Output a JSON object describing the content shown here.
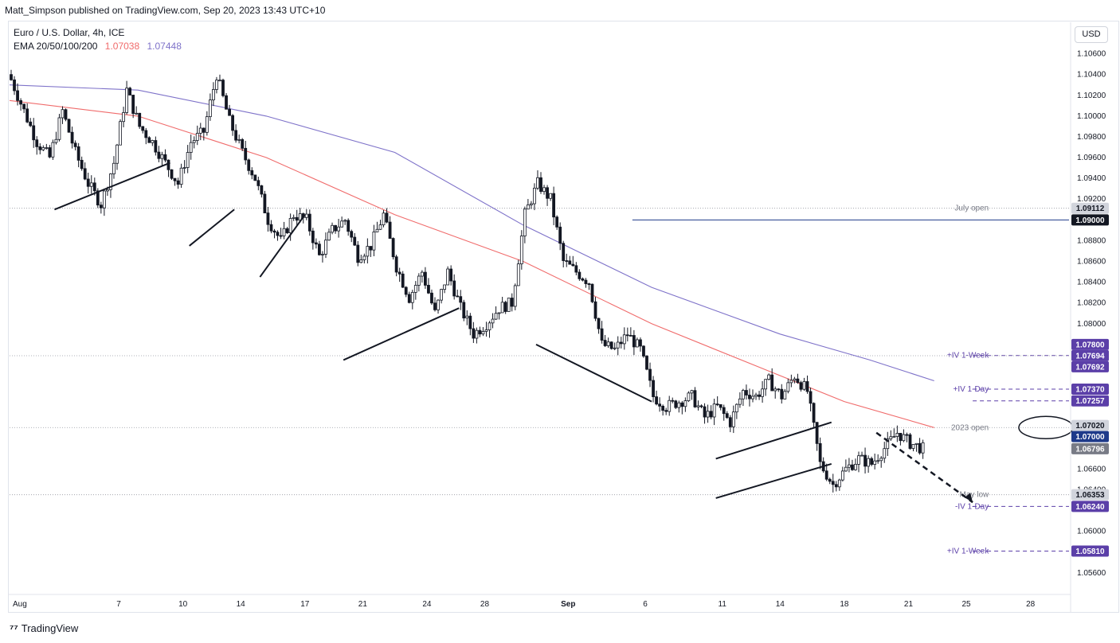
{
  "header": {
    "publisher": "Matt_Simpson published on TradingView.com, Sep 20, 2023 13:43 UTC+10",
    "symbol": "Euro / U.S. Dollar, 4h, ICE",
    "ema_label": "EMA 20/50/100/200",
    "ema_value_1": "1.07038",
    "ema_value_2": "1.07448",
    "currency_button": "USD"
  },
  "footer": {
    "brand": "TradingView"
  },
  "colors": {
    "up": "#131722",
    "down": "#131722",
    "ema_red": "#f06b6b",
    "ema_purple": "#7e72c9",
    "badge_dark": "#131722",
    "badge_blue": "#1e3a8a",
    "badge_purple": "#5b3fa8",
    "badge_gray": "#787b86",
    "badge_light": "#d1d4dc"
  },
  "chart_data": {
    "type": "candlestick",
    "title": "Euro / U.S. Dollar, 4h, ICE",
    "ylim": [
      1.054,
      1.1075
    ],
    "y_ticks": [
      "1.10600",
      "1.10400",
      "1.10200",
      "1.10000",
      "1.09800",
      "1.09600",
      "1.09400",
      "1.09200",
      "1.08800",
      "1.08600",
      "1.08400",
      "1.08200",
      "1.08000",
      "1.07600",
      "1.06600",
      "1.06400",
      "1.06000",
      "1.05600"
    ],
    "x_ticks": [
      "Aug",
      "7",
      "10",
      "14",
      "17",
      "21",
      "24",
      "28",
      "Sep",
      "6",
      "11",
      "14",
      "18",
      "21",
      "25",
      "28"
    ],
    "close_path": [
      [
        0,
        1.1035
      ],
      [
        4,
        1.1005
      ],
      [
        8,
        1.0975
      ],
      [
        12,
        1.096
      ],
      [
        16,
        1.1005
      ],
      [
        20,
        1.0965
      ],
      [
        24,
        1.0935
      ],
      [
        28,
        1.0915
      ],
      [
        32,
        1.0955
      ],
      [
        36,
        1.1025
      ],
      [
        40,
        1.099
      ],
      [
        44,
        1.0975
      ],
      [
        48,
        1.0955
      ],
      [
        52,
        1.0935
      ],
      [
        56,
        1.0975
      ],
      [
        60,
        1.0985
      ],
      [
        64,
        1.104
      ],
      [
        68,
        1.0995
      ],
      [
        72,
        1.0965
      ],
      [
        76,
        1.094
      ],
      [
        80,
        1.09
      ],
      [
        84,
        1.088
      ],
      [
        88,
        1.0905
      ],
      [
        92,
        1.09
      ],
      [
        96,
        1.0865
      ],
      [
        100,
        1.089
      ],
      [
        104,
        1.09
      ],
      [
        108,
        1.0865
      ],
      [
        112,
        1.0875
      ],
      [
        116,
        1.0905
      ],
      [
        120,
        1.0855
      ],
      [
        124,
        1.0825
      ],
      [
        128,
        1.085
      ],
      [
        132,
        1.081
      ],
      [
        136,
        1.085
      ],
      [
        140,
        1.0815
      ],
      [
        144,
        1.079
      ],
      [
        148,
        1.08
      ],
      [
        152,
        1.0815
      ],
      [
        156,
        1.082
      ],
      [
        160,
        1.0905
      ],
      [
        164,
        1.0935
      ],
      [
        168,
        1.092
      ],
      [
        172,
        1.086
      ],
      [
        176,
        1.085
      ],
      [
        180,
        1.084
      ],
      [
        184,
        1.078
      ],
      [
        188,
        1.0775
      ],
      [
        192,
        1.079
      ],
      [
        196,
        1.0775
      ],
      [
        200,
        1.073
      ],
      [
        204,
        1.072
      ],
      [
        208,
        1.0725
      ],
      [
        212,
        1.073
      ],
      [
        216,
        1.071
      ],
      [
        220,
        1.072
      ],
      [
        224,
        1.0705
      ],
      [
        228,
        1.0735
      ],
      [
        232,
        1.073
      ],
      [
        236,
        1.0745
      ],
      [
        240,
        1.073
      ],
      [
        244,
        1.075
      ],
      [
        248,
        1.0735
      ],
      [
        252,
        1.0665
      ],
      [
        256,
        1.0645
      ],
      [
        260,
        1.066
      ],
      [
        264,
        1.067
      ],
      [
        268,
        1.0665
      ],
      [
        272,
        1.068
      ],
      [
        276,
        1.0695
      ],
      [
        280,
        1.0685
      ],
      [
        284,
        1.06796
      ]
    ],
    "ema_20_50": {
      "name": "EMA 20/50",
      "last": 1.07038,
      "points": [
        [
          0,
          1.1015
        ],
        [
          40,
          1.1
        ],
        [
          80,
          1.096
        ],
        [
          120,
          1.0905
        ],
        [
          160,
          1.086
        ],
        [
          200,
          1.08
        ],
        [
          236,
          1.0755
        ],
        [
          260,
          1.0725
        ],
        [
          288,
          1.07
        ]
      ]
    },
    "ema_100_200": {
      "name": "EMA 100/200",
      "last": 1.07448,
      "points": [
        [
          0,
          1.103
        ],
        [
          40,
          1.1025
        ],
        [
          80,
          1.1
        ],
        [
          120,
          1.0965
        ],
        [
          160,
          1.0895
        ],
        [
          200,
          1.0835
        ],
        [
          240,
          1.079
        ],
        [
          268,
          1.0765
        ],
        [
          288,
          1.0745
        ]
      ]
    },
    "levels": [
      {
        "label": "July open",
        "price": 1.09112,
        "badge": "1.09112",
        "badge_style": "light",
        "line": "dotted"
      },
      {
        "label": "",
        "price": 1.09,
        "badge": "1.09000",
        "badge_style": "dark",
        "line": "solid"
      },
      {
        "label": "",
        "price": 1.078,
        "badge": "1.07800",
        "badge_style": "purple",
        "line": "none"
      },
      {
        "label": "+IV 1-Week",
        "price": 1.07694,
        "badge": "1.07694",
        "badge_style": "purple",
        "line": "dashed"
      },
      {
        "label": "",
        "price": 1.07692,
        "badge": "1.07692",
        "badge_style": "purple",
        "line": "dotted"
      },
      {
        "label": "+IV 1-Day",
        "price": 1.0737,
        "badge": "1.07370",
        "badge_style": "purple",
        "line": "dashed"
      },
      {
        "label": "",
        "price": 1.07257,
        "badge": "1.07257",
        "badge_style": "purple",
        "line": "dashed"
      },
      {
        "label": "",
        "price": 1.0702,
        "badge": "1.07020",
        "badge_style": "light",
        "line": "none"
      },
      {
        "label": "2023 open",
        "price": 1.07,
        "badge": "1.07000",
        "badge_style": "blue",
        "line": "dotted"
      },
      {
        "label": "",
        "price": 1.06796,
        "badge": "1.06796",
        "badge_style": "gray",
        "line": "none"
      },
      {
        "label": "May low",
        "price": 1.06353,
        "badge": "1.06353",
        "badge_style": "light",
        "line": "dotted"
      },
      {
        "label": "-IV 1-Day",
        "price": 1.0624,
        "badge": "1.06240",
        "badge_style": "purple",
        "line": "dashed"
      },
      {
        "label": "+IV 1-Week",
        "price": 1.0581,
        "badge": "1.05810",
        "badge_style": "purple",
        "line": "dashed"
      }
    ],
    "trendlines": [
      [
        [
          14,
          1.091
        ],
        [
          50,
          1.0955
        ]
      ],
      [
        [
          56,
          1.0875
        ],
        [
          70,
          1.091
        ]
      ],
      [
        [
          78,
          1.0845
        ],
        [
          92,
          1.0905
        ]
      ],
      [
        [
          104,
          1.0765
        ],
        [
          140,
          1.0815
        ]
      ],
      [
        [
          164,
          1.078
        ],
        [
          200,
          1.0725
        ]
      ],
      [
        [
          220,
          1.0632
        ],
        [
          256,
          1.0665
        ]
      ],
      [
        [
          220,
          1.067
        ],
        [
          256,
          1.0705
        ]
      ]
    ]
  }
}
